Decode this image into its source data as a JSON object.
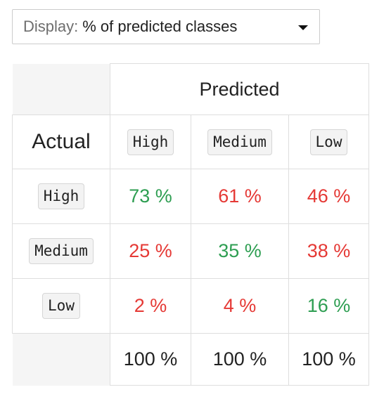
{
  "display": {
    "label": "Display:",
    "value": "% of predicted classes"
  },
  "matrix": {
    "predicted_title": "Predicted",
    "actual_title": "Actual",
    "predicted_classes": [
      "High",
      "Medium",
      "Low"
    ],
    "rows": [
      {
        "label": "High",
        "cells": [
          {
            "text": "73 %",
            "status": "correct"
          },
          {
            "text": "61 %",
            "status": "incorrect"
          },
          {
            "text": "46 %",
            "status": "incorrect"
          }
        ]
      },
      {
        "label": "Medium",
        "cells": [
          {
            "text": "25 %",
            "status": "incorrect"
          },
          {
            "text": "35 %",
            "status": "correct"
          },
          {
            "text": "38 %",
            "status": "incorrect"
          }
        ]
      },
      {
        "label": "Low",
        "cells": [
          {
            "text": "2 %",
            "status": "incorrect"
          },
          {
            "text": "4 %",
            "status": "incorrect"
          },
          {
            "text": "16 %",
            "status": "correct"
          }
        ]
      }
    ],
    "totals": [
      "100 %",
      "100 %",
      "100 %"
    ]
  },
  "colors": {
    "correct": "#2e9e52",
    "incorrect": "#e53935",
    "label_muted": "#6e6e6e"
  },
  "chart_data": {
    "type": "table",
    "title": "",
    "columns_title": "Predicted",
    "rows_title": "Actual",
    "columns": [
      "High",
      "Medium",
      "Low"
    ],
    "rows": [
      "High",
      "Medium",
      "Low"
    ],
    "values_percent": [
      [
        73,
        61,
        46
      ],
      [
        25,
        35,
        38
      ],
      [
        2,
        4,
        16
      ]
    ],
    "column_totals_percent": [
      100,
      100,
      100
    ]
  }
}
